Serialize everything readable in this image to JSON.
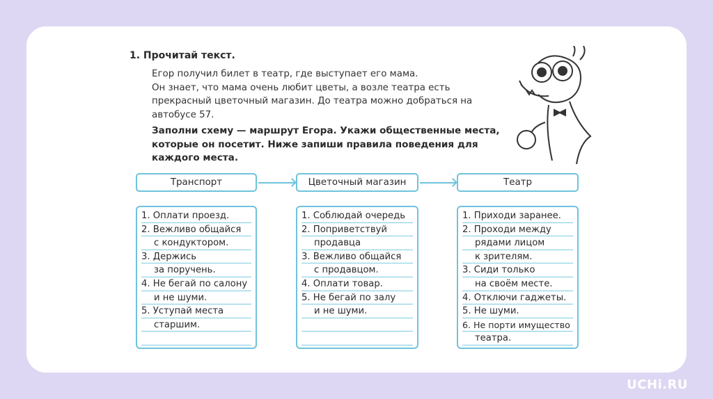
{
  "task": {
    "title": "1. Прочитай текст.",
    "text_lines": [
      "Егор получил билет в театр, где выступает его мама.",
      "Он знает, что мама очень любит цветы, а возле театра есть",
      "прекрасный цветочный магазин. До театра можно добраться на",
      "автобусе 57."
    ],
    "instruction_lines": [
      "Заполни схему — маршрут Егора. Укажи общественные места,",
      "которые он посетит. Ниже запиши правила поведения для",
      "каждого  места."
    ]
  },
  "scheme": {
    "accent_color": "#6ec3dc",
    "columns": [
      {
        "header": "Транспорт",
        "rows": [
          "1. Оплати проезд.",
          "2. Вежливо общайся",
          "с кондуктором.",
          "3. Держись",
          "за поручень.",
          "4. Не бегай по салону",
          "и не шуми.",
          "5. Уступай места",
          "старшим.",
          ""
        ]
      },
      {
        "header": "Цветочный магазин",
        "rows": [
          "1. Соблюдай очередь",
          "2. Поприветствуй",
          "продавца",
          "3. Вежливо общайся",
          "с продавцом.",
          "4. Оплати товар.",
          "5. Не бегай по залу",
          "и не шуми.",
          "",
          ""
        ]
      },
      {
        "header": "Театр",
        "rows": [
          "1. Приходи заранее.",
          "2. Проходи между",
          "рядами лицом",
          "к зрителям.",
          "3. Сиди только",
          "на своём месте.",
          "4. Отключи гаджеты.",
          "5. Не шуми.",
          "6. Не порти имущество",
          "театра."
        ]
      }
    ]
  },
  "logo": "UCHi.RU"
}
